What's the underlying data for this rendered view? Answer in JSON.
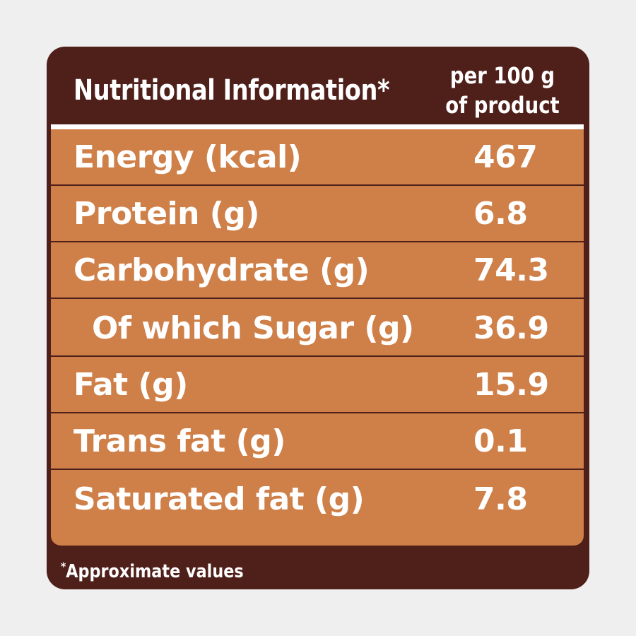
{
  "header": {
    "title": "Nutritional Information*",
    "per_line1": "per 100 g",
    "per_line2": "of product"
  },
  "rows": [
    {
      "label": "Energy (kcal)",
      "value": "467",
      "indented": false
    },
    {
      "label": "Protein (g)",
      "value": "6.8",
      "indented": false
    },
    {
      "label": "Carbohydrate (g)",
      "value": "74.3",
      "indented": false
    },
    {
      "label": "Of which Sugar (g)",
      "value": "36.9",
      "indented": true
    },
    {
      "label": "Fat (g)",
      "value": "15.9",
      "indented": false
    },
    {
      "label": "Trans fat (g)",
      "value": "0.1",
      "indented": false
    },
    {
      "label": "Saturated fat (g)",
      "value": "7.8",
      "indented": false
    }
  ],
  "footnote": {
    "marker": "*",
    "text": "Approximate values"
  },
  "colors": {
    "frame": "#4f1f1a",
    "table_fill": "#cf7f48",
    "text": "#ffffff",
    "background": "#efefef"
  }
}
